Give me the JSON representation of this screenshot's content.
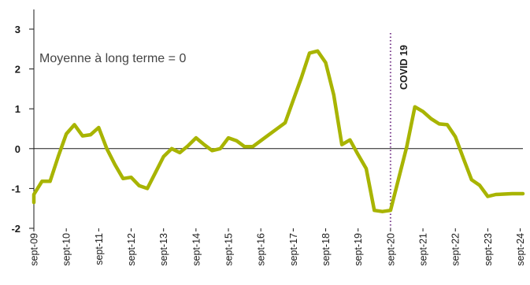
{
  "chart_data": {
    "type": "line",
    "title": "",
    "xlabel": "",
    "ylabel": "",
    "ylim": [
      -2,
      3
    ],
    "yticks": [
      3,
      2,
      1,
      0,
      -1,
      -2
    ],
    "x_range": [
      2009.667,
      2024.75
    ],
    "x_ticks": [
      {
        "label": "sept-09",
        "x": 2009.667
      },
      {
        "label": "sept-10",
        "x": 2010.667
      },
      {
        "label": "sept-11",
        "x": 2011.667
      },
      {
        "label": "sept-12",
        "x": 2012.667
      },
      {
        "label": "sept-13",
        "x": 2013.667
      },
      {
        "label": "sept-14",
        "x": 2014.667
      },
      {
        "label": "sept-15",
        "x": 2015.667
      },
      {
        "label": "sept-16",
        "x": 2016.667
      },
      {
        "label": "sept-17",
        "x": 2017.667
      },
      {
        "label": "sept-18",
        "x": 2018.667
      },
      {
        "label": "sept-19",
        "x": 2019.667
      },
      {
        "label": "sept-20",
        "x": 2020.667
      },
      {
        "label": "sept-21",
        "x": 2021.667
      },
      {
        "label": "sept-22",
        "x": 2022.667
      },
      {
        "label": "sept-23",
        "x": 2023.667
      },
      {
        "label": "sept-24",
        "x": 2024.667
      }
    ],
    "series": [
      {
        "name": "",
        "color": "#a8b400",
        "x": [
          2009.667,
          2009.667,
          2009.917,
          2010.167,
          2010.417,
          2010.667,
          2010.917,
          2011.167,
          2011.417,
          2011.667,
          2011.917,
          2012.167,
          2012.417,
          2012.667,
          2012.917,
          2013.167,
          2013.417,
          2013.667,
          2013.917,
          2014.167,
          2014.417,
          2014.667,
          2014.917,
          2015.167,
          2015.417,
          2015.667,
          2015.917,
          2016.167,
          2016.417,
          2016.667,
          2016.917,
          2017.167,
          2017.417,
          2017.667,
          2017.917,
          2018.167,
          2018.417,
          2018.667,
          2018.917,
          2019.167,
          2019.417,
          2019.667,
          2019.917,
          2020.167,
          2020.417,
          2020.667,
          2020.917,
          2021.167,
          2021.417,
          2021.667,
          2021.917,
          2022.167,
          2022.417,
          2022.667,
          2022.917,
          2023.167,
          2023.417,
          2023.667,
          2023.917,
          2024.167,
          2024.417,
          2024.75
        ],
        "y": [
          -1.35,
          -1.15,
          -0.82,
          -0.82,
          -0.2,
          0.37,
          0.6,
          0.32,
          0.35,
          0.53,
          0.0,
          -0.4,
          -0.75,
          -0.72,
          -0.93,
          -1.0,
          -0.6,
          -0.2,
          0.0,
          -0.1,
          0.07,
          0.27,
          0.1,
          -0.05,
          0.0,
          0.27,
          0.2,
          0.05,
          0.05,
          0.2,
          0.35,
          0.5,
          0.65,
          1.22,
          1.78,
          2.4,
          2.45,
          2.16,
          1.35,
          0.1,
          0.22,
          -0.15,
          -0.5,
          -1.55,
          -1.58,
          -1.55,
          -0.75,
          0.05,
          1.05,
          0.93,
          0.75,
          0.62,
          0.6,
          0.3,
          -0.25,
          -0.78,
          -0.92,
          -1.2,
          -1.15,
          -1.14,
          -1.13,
          -1.13
        ]
      }
    ],
    "reference_line": {
      "y": 0
    },
    "annotations": {
      "note": "Moyenne à long terme = 0",
      "event_label": "COVID 19",
      "event_x": 2020.667
    }
  }
}
